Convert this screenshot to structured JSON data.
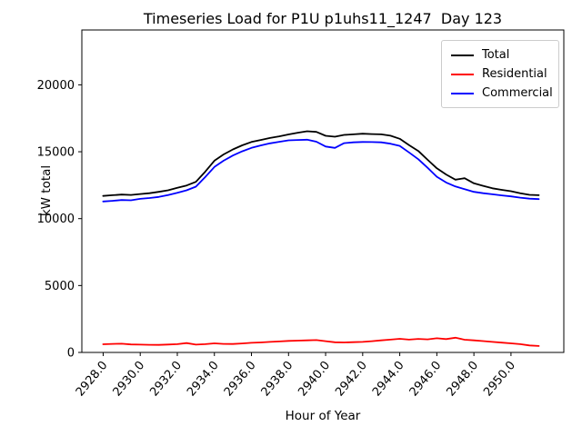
{
  "chart_data": {
    "type": "line",
    "title": "Timeseries Load for P1U p1uhs11_1247  Day 123",
    "xlabel": "Hour of Year",
    "ylabel": "kW total",
    "grid": false,
    "legend_position": "upper right",
    "xlim": [
      2926.85,
      2952.85
    ],
    "ylim": [
      0,
      24100
    ],
    "xticks": [
      2928,
      2930,
      2932,
      2934,
      2936,
      2938,
      2940,
      2942,
      2944,
      2946,
      2948,
      2950
    ],
    "xtick_labels": [
      "2928.0",
      "2930.0",
      "2932.0",
      "2934.0",
      "2936.0",
      "2938.0",
      "2940.0",
      "2942.0",
      "2944.0",
      "2946.0",
      "2948.0",
      "2950.0"
    ],
    "yticks": [
      0,
      5000,
      10000,
      15000,
      20000
    ],
    "ytick_labels": [
      "0",
      "5000",
      "10000",
      "15000",
      "20000"
    ],
    "x": [
      2928.0,
      2928.5,
      2929.0,
      2929.5,
      2930.0,
      2930.5,
      2931.0,
      2931.5,
      2932.0,
      2932.5,
      2933.0,
      2933.5,
      2934.0,
      2934.5,
      2935.0,
      2935.5,
      2936.0,
      2936.5,
      2937.0,
      2937.5,
      2938.0,
      2938.5,
      2939.0,
      2939.5,
      2940.0,
      2940.5,
      2941.0,
      2941.5,
      2942.0,
      2942.5,
      2943.0,
      2943.5,
      2944.0,
      2944.5,
      2945.0,
      2945.5,
      2946.0,
      2946.5,
      2947.0,
      2947.5,
      2948.0,
      2948.5,
      2949.0,
      2949.5,
      2950.0,
      2950.5,
      2951.0,
      2951.5
    ],
    "series": [
      {
        "name": "Total",
        "color": "#000000",
        "values": [
          11700,
          11750,
          11800,
          11770,
          11840,
          11900,
          12000,
          12120,
          12300,
          12480,
          12750,
          13500,
          14330,
          14800,
          15170,
          15480,
          15730,
          15880,
          16030,
          16150,
          16290,
          16420,
          16530,
          16480,
          16190,
          16120,
          16260,
          16300,
          16350,
          16320,
          16300,
          16200,
          15970,
          15500,
          15060,
          14400,
          13760,
          13300,
          12910,
          13020,
          12640,
          12450,
          12270,
          12150,
          12050,
          11900,
          11780,
          11750
        ]
      },
      {
        "name": "Residential",
        "color": "#ff0000",
        "values": [
          610,
          640,
          650,
          600,
          585,
          570,
          565,
          590,
          620,
          700,
          585,
          620,
          680,
          640,
          630,
          670,
          720,
          750,
          790,
          820,
          860,
          880,
          900,
          920,
          840,
          760,
          750,
          770,
          790,
          840,
          900,
          960,
          1020,
          960,
          1010,
          980,
          1060,
          1000,
          1100,
          950,
          900,
          850,
          790,
          730,
          680,
          620,
          520,
          480
        ]
      },
      {
        "name": "Commercial",
        "color": "#0000ff",
        "values": [
          11280,
          11330,
          11390,
          11370,
          11480,
          11540,
          11620,
          11760,
          11930,
          12120,
          12390,
          13100,
          13860,
          14330,
          14720,
          15030,
          15290,
          15470,
          15630,
          15740,
          15850,
          15880,
          15900,
          15750,
          15390,
          15290,
          15640,
          15700,
          15730,
          15720,
          15700,
          15600,
          15440,
          14950,
          14440,
          13800,
          13130,
          12700,
          12400,
          12200,
          12000,
          11900,
          11820,
          11740,
          11660,
          11570,
          11490,
          11460
        ]
      }
    ]
  },
  "legend": {
    "entries": [
      {
        "label": "Total"
      },
      {
        "label": "Residential"
      },
      {
        "label": "Commercial"
      }
    ]
  }
}
